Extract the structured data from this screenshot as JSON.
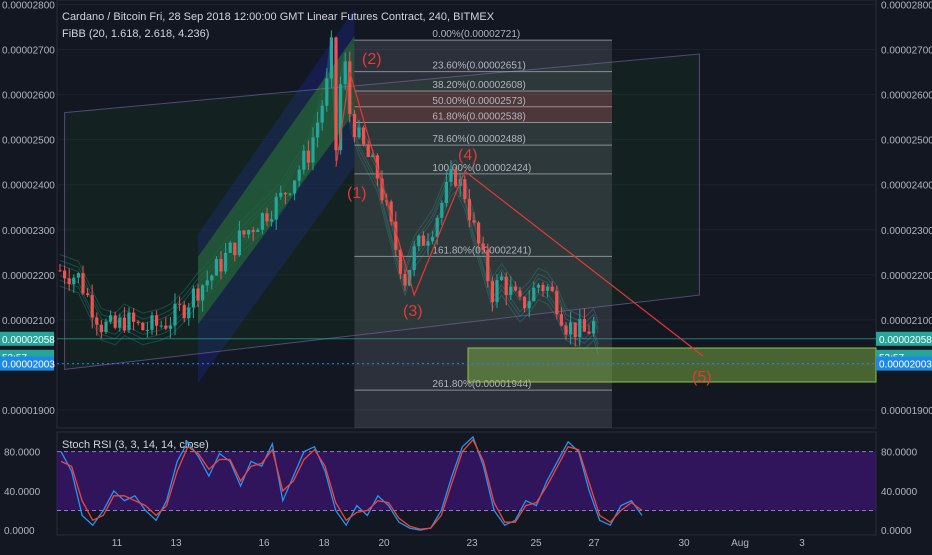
{
  "header": {
    "title": "Cardano / Bitcoin Fri, 28 Sep 2018 12:00:00 GMT Linear Futures Contract, 240, BITMEX",
    "fibb": "FiBB (20, 1.618, 2.618, 4.236)"
  },
  "colors": {
    "background": "#131722",
    "up_candle": "#26a69a",
    "down_candle": "#ef5350",
    "fib_band_green": "#2e7d32",
    "fib_band_blue": "#1a237e",
    "wave_line": "#e53935",
    "target_box": "#8bc34a",
    "stoch_k": "#2196f3",
    "stoch_d": "#f44336",
    "stoch_band": "#4a148c"
  },
  "price_axis": {
    "ticks": [
      "0.00002800",
      "0.00002700",
      "0.00002600",
      "0.00002500",
      "0.00002400",
      "0.00002300",
      "0.00002200",
      "0.00002100",
      "0.00002000",
      "0.00001900"
    ],
    "tags": [
      {
        "text": "0.00002058",
        "color": "#26a69a"
      },
      {
        "text": "53:57",
        "color": "#26a69a"
      },
      {
        "text": "0.00002003",
        "color": "#1e88e5"
      }
    ]
  },
  "time_axis": {
    "labels": [
      "11",
      "13",
      "16",
      "18",
      "20",
      "23",
      "25",
      "27",
      "30",
      "Aug",
      "3"
    ]
  },
  "fib_levels": [
    {
      "label": "0.00%(0.00002721)",
      "price": 2.721e-05
    },
    {
      "label": "23.60%(0.00002651)",
      "price": 2.651e-05
    },
    {
      "label": "38.20%(0.00002608)",
      "price": 2.608e-05
    },
    {
      "label": "50.00%(0.00002573)",
      "price": 2.573e-05
    },
    {
      "label": "61.80%(0.00002538)",
      "price": 2.538e-05
    },
    {
      "label": "78.60%(0.00002488)",
      "price": 2.488e-05
    },
    {
      "label": "100.00%(0.00002424)",
      "price": 2.424e-05
    },
    {
      "label": "161.80%(0.00002241)",
      "price": 2.241e-05
    },
    {
      "label": "261.80%(0.00001944)",
      "price": 1.944e-05
    }
  ],
  "wave_labels": [
    "(1)",
    "(2)",
    "(3)",
    "(4)",
    "(5)"
  ],
  "stoch": {
    "title": "Stoch RSI (3, 3, 14, 14, close)",
    "ticks": [
      "80.0000",
      "40.0000",
      "0.0000"
    ],
    "upper": 80,
    "lower": 20
  },
  "chart_data": [
    {
      "type": "candlestick",
      "title": "Cardano / Bitcoin Fri, 28 Sep 2018 12:00:00 GMT Linear Futures Contract, 240, BITMEX",
      "ylim": [
        1.86e-05,
        2.81e-05
      ],
      "last_price": 2.058e-05,
      "countdown": "53:57",
      "marked_level": 2.003e-05,
      "close_path": [
        [
          0,
          2.21e-05
        ],
        [
          4,
          2.195e-05
        ],
        [
          7,
          2.13e-05
        ],
        [
          9,
          2.09e-05
        ],
        [
          12,
          2.08e-05
        ],
        [
          14,
          2.1e-05
        ],
        [
          16,
          2.09e-05
        ],
        [
          18,
          2.08e-05
        ],
        [
          20,
          2.085e-05
        ],
        [
          22,
          2.09e-05
        ],
        [
          24,
          2.1e-05
        ],
        [
          27,
          2.13e-05
        ],
        [
          30,
          2.17e-05
        ],
        [
          33,
          2.2e-05
        ],
        [
          36,
          2.24e-05
        ],
        [
          39,
          2.28e-05
        ],
        [
          42,
          2.31e-05
        ],
        [
          45,
          2.34e-05
        ],
        [
          48,
          2.37e-05
        ],
        [
          51,
          2.42e-05
        ],
        [
          54,
          2.47e-05
        ],
        [
          56,
          2.54e-05
        ],
        [
          58,
          2.62e-05
        ],
        [
          59,
          2.7e-05
        ],
        [
          60,
          2.48e-05
        ],
        [
          61,
          2.62e-05
        ],
        [
          62,
          2.66e-05
        ],
        [
          63,
          2.56e-05
        ],
        [
          65,
          2.5e-05
        ],
        [
          67,
          2.46e-05
        ],
        [
          69,
          2.42e-05
        ],
        [
          71,
          2.34e-05
        ],
        [
          73,
          2.26e-05
        ],
        [
          75,
          2.19e-05
        ],
        [
          77,
          2.25e-05
        ],
        [
          79,
          2.28e-05
        ],
        [
          81,
          2.31e-05
        ],
        [
          83,
          2.36e-05
        ],
        [
          85,
          2.41e-05
        ],
        [
          86,
          2.42e-05
        ],
        [
          88,
          2.38e-05
        ],
        [
          90,
          2.3e-05
        ],
        [
          92,
          2.23e-05
        ],
        [
          94,
          2.16e-05
        ],
        [
          96,
          2.19e-05
        ],
        [
          98,
          2.16e-05
        ],
        [
          100,
          2.13e-05
        ],
        [
          102,
          2.15e-05
        ],
        [
          104,
          2.18e-05
        ],
        [
          106,
          2.17e-05
        ],
        [
          108,
          2.14e-05
        ],
        [
          110,
          2.09e-05
        ],
        [
          112,
          2.08e-05
        ],
        [
          114,
          2.07e-05
        ],
        [
          116,
          2.09e-05
        ],
        [
          117,
          2.058e-05
        ]
      ]
    },
    {
      "type": "line",
      "title": "Stoch RSI (3, 3, 14, 14, close)",
      "ylim": [
        -5,
        100
      ],
      "series": [
        {
          "name": "K",
          "values": [
            80,
            60,
            15,
            5,
            20,
            40,
            30,
            35,
            20,
            10,
            30,
            70,
            90,
            75,
            55,
            78,
            70,
            45,
            70,
            65,
            88,
            30,
            55,
            80,
            85,
            60,
            20,
            5,
            25,
            15,
            35,
            25,
            8,
            2,
            0,
            2,
            20,
            55,
            85,
            95,
            65,
            20,
            5,
            10,
            30,
            25,
            50,
            70,
            90,
            80,
            40,
            10,
            5,
            25,
            30,
            15
          ]
        },
        {
          "name": "D",
          "values": [
            70,
            65,
            30,
            10,
            15,
            35,
            35,
            30,
            25,
            15,
            25,
            60,
            85,
            78,
            62,
            72,
            72,
            50,
            65,
            68,
            82,
            40,
            50,
            72,
            82,
            65,
            28,
            10,
            18,
            20,
            30,
            28,
            12,
            4,
            1,
            2,
            15,
            48,
            80,
            92,
            70,
            28,
            8,
            8,
            25,
            28,
            45,
            65,
            85,
            82,
            48,
            15,
            8,
            20,
            28,
            20
          ]
        }
      ]
    }
  ]
}
